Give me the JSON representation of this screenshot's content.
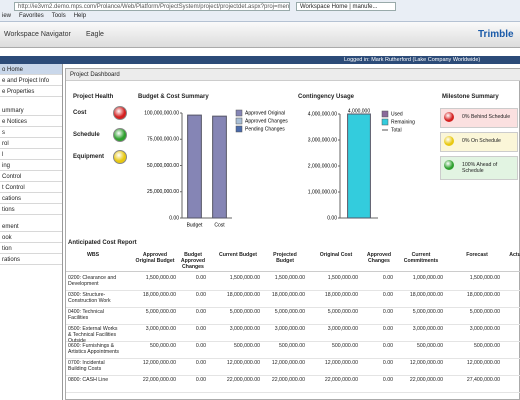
{
  "browser": {
    "address": "http://ie3vm2.demo.mps.com/Prolance/Web/Platform/ProjectSystem/project/projectdet.aspx?proj=men",
    "tab": "Workspace Home | manufe...",
    "menu": [
      "iew",
      "Favorites",
      "Tools",
      "Help"
    ]
  },
  "header": {
    "navigator": "Workspace Navigator",
    "project": "Eagle",
    "brand": "Trimble",
    "logged_in": "Logged in: Mark Rutherford (Lake Company Worldwide)"
  },
  "sidebar": [
    "o Home",
    "e and Project Info",
    "e Properties",
    "ummary",
    "e Notices",
    "s",
    "rol",
    "l",
    "ing",
    "Control",
    "t Control",
    "cations",
    "tions",
    "ement",
    "ook",
    "tion",
    "rations"
  ],
  "dashboard": {
    "title": "Project Dashboard",
    "health": {
      "title": "Project Health",
      "items": [
        {
          "label": "Cost",
          "color": "#d42020"
        },
        {
          "label": "Schedule",
          "color": "#2ea02e"
        },
        {
          "label": "Equipment",
          "color": "#e8c810"
        }
      ]
    },
    "budget_chart": {
      "type": "bar",
      "title": "Budget & Cost Summary",
      "categories": [
        "Budget",
        "Cost"
      ],
      "values": [
        98000000,
        97000000
      ],
      "color": "#8585b5",
      "ylim": [
        0,
        100000000
      ],
      "yticks": [
        {
          "value": 0,
          "label": "0.00"
        },
        {
          "value": 25000000,
          "label": "25,000,000.00"
        },
        {
          "value": 50000000,
          "label": "50,000,000.00"
        },
        {
          "value": 75000000,
          "label": "75,000,000.00"
        },
        {
          "value": 100000000,
          "label": "100,000,000.00"
        }
      ],
      "legend": [
        {
          "name": "Approved Original",
          "color": "#8585b5"
        },
        {
          "name": "Approved Changes",
          "color": "#a9bfd6"
        },
        {
          "name": "Pending Changes",
          "color": "#4a6aaa"
        }
      ]
    },
    "contingency_chart": {
      "type": "bar",
      "title": "Contingency Usage",
      "values": [
        4000000
      ],
      "value_labels": [
        "4,000,000"
      ],
      "color": "#33ccdd",
      "ylim": [
        0,
        4000000
      ],
      "yticks": [
        {
          "value": 0,
          "label": "0.00"
        },
        {
          "value": 1000000,
          "label": "1,000,000.00"
        },
        {
          "value": 2000000,
          "label": "2,000,000.00"
        },
        {
          "value": 3000000,
          "label": "3,000,000.00"
        },
        {
          "value": 4000000,
          "label": "4,000,000.00"
        }
      ],
      "legend": [
        {
          "name": "Used",
          "color": "#8a6a9a"
        },
        {
          "name": "Remaining",
          "color": "#33ccdd"
        },
        {
          "name": "Total",
          "color": "#555555"
        }
      ]
    },
    "milestones": {
      "title": "Milestone Summary",
      "items": [
        {
          "label": "0% Behind Schedule",
          "color": "#d42020",
          "bg": "#fbe0e0"
        },
        {
          "label": "0% On Schedule",
          "color": "#e8c810",
          "bg": "#fbf6d8"
        },
        {
          "label": "100% Ahead of Schedule",
          "color": "#2ea02e",
          "bg": "#e2f4e2"
        }
      ]
    }
  },
  "table": {
    "title": "Anticipated Cost Report",
    "columns": [
      "WBS",
      "Approved Original Budget",
      "Budget Approved Changes",
      "Current Budget",
      "Projected Budget",
      "Original Cost",
      "Approved Changes",
      "Current Commitments",
      "Forecast",
      "Actu"
    ],
    "rows": [
      [
        "0200: Clearance and Development",
        "1,500,000.00",
        "0.00",
        "1,500,000.00",
        "1,500,000.00",
        "1,500,000.00",
        "0.00",
        "1,000,000.00",
        "1,500,000.00",
        "1,"
      ],
      [
        "0300: Structure-Construction Work",
        "18,000,000.00",
        "0.00",
        "18,000,000.00",
        "18,000,000.00",
        "18,000,000.00",
        "0.00",
        "18,000,000.00",
        "18,000,000.00",
        "18,"
      ],
      [
        "0400: Technical Facilities",
        "5,000,000.00",
        "0.00",
        "5,000,000.00",
        "5,000,000.00",
        "5,000,000.00",
        "0.00",
        "5,000,000.00",
        "5,000,000.00",
        "5,"
      ],
      [
        "0500: External Works & Technical Facilities Outside",
        "3,000,000.00",
        "0.00",
        "3,000,000.00",
        "3,000,000.00",
        "3,000,000.00",
        "0.00",
        "3,000,000.00",
        "3,000,000.00",
        "3,"
      ],
      [
        "0600: Furnishings & Artistics Appointments",
        "500,000.00",
        "0.00",
        "500,000.00",
        "500,000.00",
        "500,000.00",
        "0.00",
        "500,000.00",
        "500,000.00",
        "5"
      ],
      [
        "0700: Incidental Building Costs",
        "12,000,000.00",
        "0.00",
        "12,000,000.00",
        "12,000,000.00",
        "12,000,000.00",
        "0.00",
        "12,000,000.00",
        "12,000,000.00",
        "12,"
      ],
      [
        "0800: CASH Line",
        "22,000,000.00",
        "0.00",
        "22,000,000.00",
        "22,000,000.00",
        "22,000,000.00",
        "0.00",
        "22,000,000.00",
        "27,400,000.00",
        "22,"
      ]
    ]
  }
}
